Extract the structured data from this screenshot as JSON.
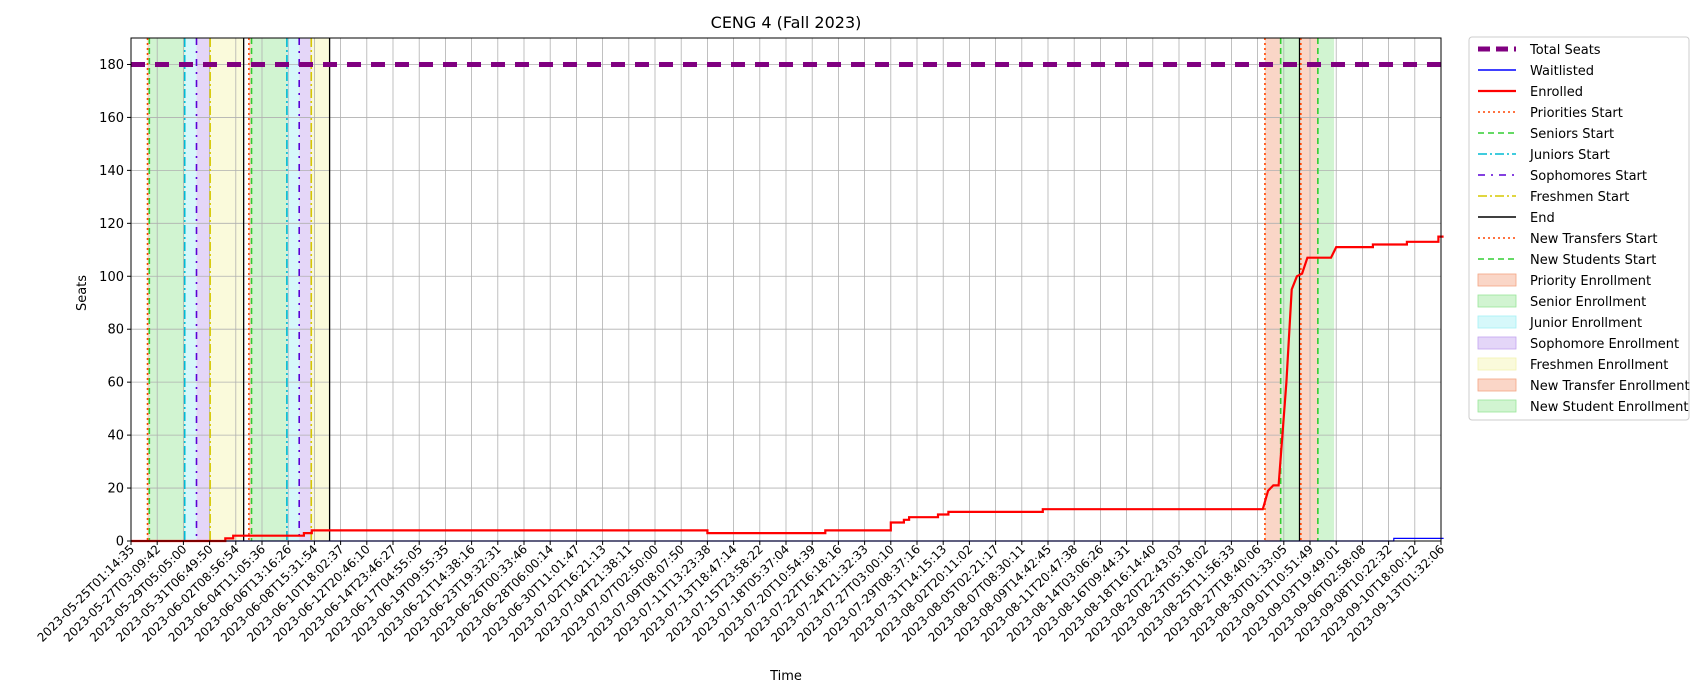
{
  "chart_data": {
    "type": "line",
    "title": "CENG 4 (Fall 2023)",
    "xlabel": "Time",
    "ylabel": "Seats",
    "ylim": [
      0,
      190
    ],
    "yticks": [
      0,
      20,
      40,
      60,
      80,
      100,
      120,
      140,
      160,
      180
    ],
    "grid": true,
    "legend_position": "outside-right",
    "xticks": [
      "2023-05-25T01:14:35",
      "2023-05-27T03:09:42",
      "2023-05-29T05:05:00",
      "2023-05-31T06:49:50",
      "2023-06-02T08:56:54",
      "2023-06-04T11:05:36",
      "2023-06-06T13:16:26",
      "2023-06-08T15:31:54",
      "2023-06-10T18:02:37",
      "2023-06-12T20:46:10",
      "2023-06-14T23:46:27",
      "2023-06-17T04:55:05",
      "2023-06-19T09:55:35",
      "2023-06-21T14:38:16",
      "2023-06-23T19:32:31",
      "2023-06-26T00:33:46",
      "2023-06-28T06:00:14",
      "2023-06-30T11:01:47",
      "2023-07-02T16:21:13",
      "2023-07-04T21:38:11",
      "2023-07-07T02:50:00",
      "2023-07-09T08:07:50",
      "2023-07-11T13:23:38",
      "2023-07-13T18:47:14",
      "2023-07-15T23:58:22",
      "2023-07-18T05:37:04",
      "2023-07-20T10:54:39",
      "2023-07-22T16:18:16",
      "2023-07-24T21:32:33",
      "2023-07-27T03:00:10",
      "2023-07-29T08:37:16",
      "2023-07-31T14:15:13",
      "2023-08-02T20:11:02",
      "2023-08-05T02:21:17",
      "2023-08-07T08:30:11",
      "2023-08-09T14:42:45",
      "2023-08-11T20:47:38",
      "2023-08-14T03:06:26",
      "2023-08-16T09:44:31",
      "2023-08-18T16:14:40",
      "2023-08-20T22:43:03",
      "2023-08-23T05:18:02",
      "2023-08-25T11:56:33",
      "2023-08-27T18:40:06",
      "2023-08-30T01:33:05",
      "2023-09-01T10:51:49",
      "2023-09-03T19:49:01",
      "2023-09-06T02:58:08",
      "2023-09-08T10:22:32",
      "2023-09-10T18:00:12",
      "2023-09-13T01:32:06"
    ],
    "series": [
      {
        "name": "Total Seats",
        "color": "#800080",
        "style": "dashed-thick",
        "points": [
          [
            0,
            180
          ],
          [
            50.1,
            180
          ]
        ]
      },
      {
        "name": "Waitlisted",
        "color": "#0000ff",
        "style": "solid-thin",
        "points": [
          [
            0,
            0
          ],
          [
            48.2,
            0
          ],
          [
            48.2,
            1
          ],
          [
            50.1,
            1
          ]
        ]
      },
      {
        "name": "Enrolled",
        "color": "#ff0000",
        "style": "solid-thick",
        "points": [
          [
            0,
            0
          ],
          [
            3.6,
            0
          ],
          [
            3.6,
            1
          ],
          [
            3.9,
            1
          ],
          [
            3.9,
            2
          ],
          [
            6.6,
            2
          ],
          [
            6.6,
            3
          ],
          [
            6.9,
            3
          ],
          [
            6.9,
            4
          ],
          [
            22.0,
            4
          ],
          [
            22.0,
            3
          ],
          [
            26.5,
            3
          ],
          [
            26.5,
            4
          ],
          [
            29.0,
            4
          ],
          [
            29.0,
            7
          ],
          [
            29.5,
            7
          ],
          [
            29.5,
            8
          ],
          [
            29.7,
            8
          ],
          [
            29.7,
            9
          ],
          [
            30.8,
            9
          ],
          [
            30.8,
            10
          ],
          [
            31.2,
            10
          ],
          [
            31.2,
            11
          ],
          [
            34.8,
            11
          ],
          [
            34.8,
            12
          ],
          [
            43.2,
            12
          ],
          [
            43.4,
            19
          ],
          [
            43.6,
            21
          ],
          [
            43.8,
            21
          ],
          [
            44.1,
            60
          ],
          [
            44.3,
            95
          ],
          [
            44.5,
            100
          ],
          [
            44.7,
            101
          ],
          [
            44.9,
            107
          ],
          [
            45.8,
            107
          ],
          [
            46.0,
            111
          ],
          [
            47.4,
            111
          ],
          [
            47.4,
            112
          ],
          [
            48.7,
            112
          ],
          [
            48.7,
            113
          ],
          [
            49.9,
            113
          ],
          [
            49.9,
            115
          ],
          [
            50.1,
            115
          ]
        ]
      }
    ],
    "event_lines": [
      {
        "name": "Priorities Start",
        "color": "#ff4500",
        "style": "dotted",
        "x": [
          0.63,
          4.5,
          43.28
        ]
      },
      {
        "name": "Seniors Start",
        "color": "#32cd32",
        "style": "dashed",
        "x": [
          0.7,
          4.6,
          43.88
        ]
      },
      {
        "name": "Juniors Start",
        "color": "#00bcd4",
        "style": "dashdot",
        "x": [
          2.05,
          5.95
        ]
      },
      {
        "name": "Sophomores Start",
        "color": "#5b00d6",
        "style": "dashdot-sparse",
        "x": [
          2.5,
          6.42
        ]
      },
      {
        "name": "Freshmen Start",
        "color": "#d6c800",
        "style": "dashdot",
        "x": [
          3.02,
          6.88
        ]
      },
      {
        "name": "End",
        "color": "#000000",
        "style": "solid",
        "x": [
          4.3,
          7.58,
          44.6
        ]
      },
      {
        "name": "New Transfers Start",
        "color": "#ff4500",
        "style": "dotted",
        "x": [
          44.65
        ]
      },
      {
        "name": "New Students Start",
        "color": "#32cd32",
        "style": "dashed",
        "x": [
          45.3
        ]
      }
    ],
    "enrollment_periods": [
      {
        "name": "Priority Enrollment",
        "color": "#f4a582",
        "spans": [
          [
            0.63,
            0.7
          ],
          [
            4.5,
            4.6
          ],
          [
            43.28,
            43.88
          ]
        ]
      },
      {
        "name": "Senior Enrollment",
        "color": "#99e699",
        "spans": [
          [
            0.7,
            2.05
          ],
          [
            4.6,
            5.95
          ],
          [
            43.88,
            44.6
          ]
        ]
      },
      {
        "name": "Junior Enrollment",
        "color": "#a5f0f5",
        "spans": [
          [
            2.05,
            2.5
          ],
          [
            5.95,
            6.42
          ]
        ]
      },
      {
        "name": "Sophomore Enrollment",
        "color": "#c3a5f0",
        "spans": [
          [
            2.5,
            3.02
          ],
          [
            6.42,
            6.88
          ]
        ]
      },
      {
        "name": "Freshmen Enrollment",
        "color": "#f3f3b0",
        "spans": [
          [
            3.02,
            4.3
          ],
          [
            6.88,
            7.58
          ]
        ]
      },
      {
        "name": "New Transfer Enrollment",
        "color": "#f4a582",
        "spans": [
          [
            44.65,
            45.3
          ]
        ]
      },
      {
        "name": "New Student Enrollment",
        "color": "#99e699",
        "spans": [
          [
            45.3,
            45.92
          ]
        ]
      }
    ]
  }
}
